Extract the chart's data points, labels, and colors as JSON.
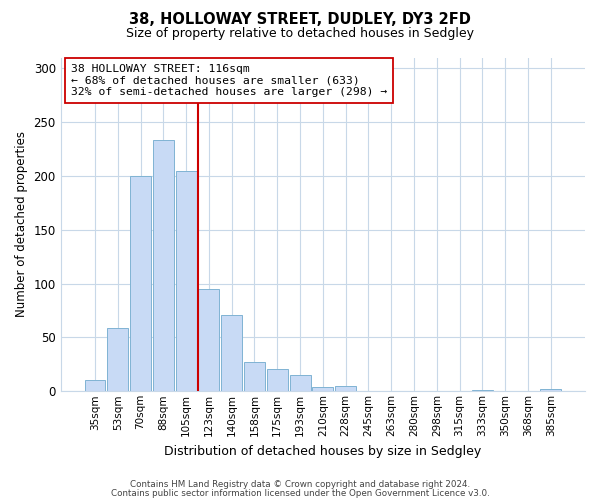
{
  "title": "38, HOLLOWAY STREET, DUDLEY, DY3 2FD",
  "subtitle": "Size of property relative to detached houses in Sedgley",
  "xlabel": "Distribution of detached houses by size in Sedgley",
  "ylabel": "Number of detached properties",
  "bar_labels": [
    "35sqm",
    "53sqm",
    "70sqm",
    "88sqm",
    "105sqm",
    "123sqm",
    "140sqm",
    "158sqm",
    "175sqm",
    "193sqm",
    "210sqm",
    "228sqm",
    "245sqm",
    "263sqm",
    "280sqm",
    "298sqm",
    "315sqm",
    "333sqm",
    "350sqm",
    "368sqm",
    "385sqm"
  ],
  "bar_values": [
    10,
    59,
    200,
    233,
    205,
    95,
    71,
    27,
    21,
    15,
    4,
    5,
    0,
    0,
    0,
    0,
    0,
    1,
    0,
    0,
    2
  ],
  "bar_color": "#c8daf5",
  "bar_edge_color": "#7fb3d3",
  "vline_color": "#cc0000",
  "vline_position": 4.5,
  "ylim": [
    0,
    310
  ],
  "yticks": [
    0,
    50,
    100,
    150,
    200,
    250,
    300
  ],
  "annotation_title": "38 HOLLOWAY STREET: 116sqm",
  "annotation_line1": "← 68% of detached houses are smaller (633)",
  "annotation_line2": "32% of semi-detached houses are larger (298) →",
  "annotation_box_color": "#ffffff",
  "annotation_box_edge": "#cc0000",
  "footer1": "Contains HM Land Registry data © Crown copyright and database right 2024.",
  "footer2": "Contains public sector information licensed under the Open Government Licence v3.0.",
  "background_color": "#ffffff",
  "grid_color": "#c8d8e8"
}
